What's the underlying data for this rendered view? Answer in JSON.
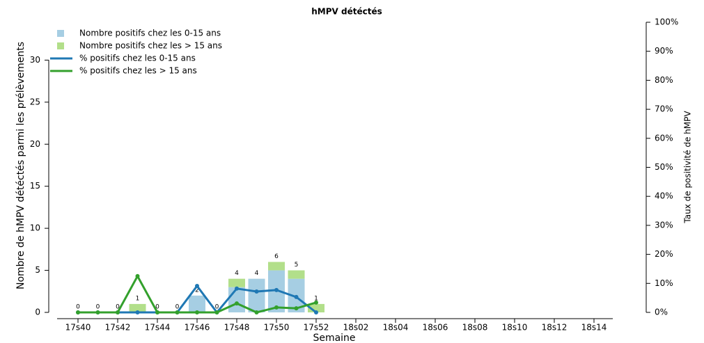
{
  "chart_data": {
    "type": "bar",
    "title": "hMPV détéctés",
    "x_label": "Semaine",
    "y_label": "Nombre de hMPV détéctés parmi les prélèvements",
    "y2_label": "Taux de positivité de hMPV",
    "categories": [
      "17s40",
      null,
      "17s42",
      null,
      "17s44",
      null,
      "17s46",
      null,
      "17s48",
      null,
      "17s50",
      null,
      "17s52",
      null,
      "18s02",
      null,
      "18s04",
      null,
      "18s06",
      null,
      "18s08",
      null,
      "18s10",
      null,
      "18s12",
      null,
      "18s14"
    ],
    "ylim": [
      0,
      34.5
    ],
    "yticks": [
      0,
      5,
      10,
      15,
      20,
      25,
      30
    ],
    "y2lim": [
      0,
      100
    ],
    "y2ticks": [
      {
        "value": 0,
        "label": "0%"
      },
      {
        "value": 10,
        "label": "10%"
      },
      {
        "value": 20,
        "label": "20%"
      },
      {
        "value": 30,
        "label": "30%"
      },
      {
        "value": 40,
        "label": "40%"
      },
      {
        "value": 50,
        "label": "50%"
      },
      {
        "value": 60,
        "label": "60%"
      },
      {
        "value": 70,
        "label": "70%"
      },
      {
        "value": 80,
        "label": "80%"
      },
      {
        "value": 90,
        "label": "90%"
      },
      {
        "value": 100,
        "label": "100%"
      }
    ],
    "legend": "top-left",
    "series": [
      {
        "name": "Nombre positifs chez les 0-15 ans",
        "type": "bar",
        "color": "#a6cee3",
        "values": [
          0,
          0,
          0,
          0,
          0,
          0,
          2,
          0,
          3,
          4,
          5,
          4,
          0,
          null,
          null,
          null,
          null,
          null,
          null,
          null,
          null,
          null,
          null,
          null,
          null,
          null,
          null
        ]
      },
      {
        "name": "Nombre positifs chez les > 15 ans",
        "type": "bar",
        "color": "#b2df8a",
        "values": [
          0,
          0,
          0,
          1,
          0,
          0,
          0,
          0,
          1,
          0,
          1,
          1,
          1,
          null,
          null,
          null,
          null,
          null,
          null,
          null,
          null,
          null,
          null,
          null,
          null,
          null,
          null
        ]
      },
      {
        "name": "% positifs chez les 0-15 ans",
        "type": "line",
        "axis": "y2",
        "color": "#1f78b4",
        "values": [
          0,
          0,
          0,
          0,
          0,
          0,
          9.1,
          0,
          8.2,
          7.2,
          7.7,
          5.3,
          0,
          null,
          null,
          null,
          null,
          null,
          null,
          null,
          null,
          null,
          null,
          null,
          null,
          null,
          null
        ]
      },
      {
        "name": "% positifs chez les > 15 ans",
        "type": "line",
        "axis": "y2",
        "color": "#33a02c",
        "values": [
          0,
          0,
          0,
          12.5,
          0,
          0,
          0,
          0,
          3.1,
          0,
          1.7,
          1.4,
          3.4,
          null,
          null,
          null,
          null,
          null,
          null,
          null,
          null,
          null,
          null,
          null,
          null,
          null,
          null
        ]
      }
    ],
    "bar_totals": [
      0,
      0,
      0,
      1,
      0,
      0,
      2,
      0,
      4,
      4,
      6,
      5,
      1,
      null,
      null,
      null,
      null,
      null,
      null,
      null,
      null,
      null,
      null,
      null,
      null,
      null,
      null
    ]
  }
}
